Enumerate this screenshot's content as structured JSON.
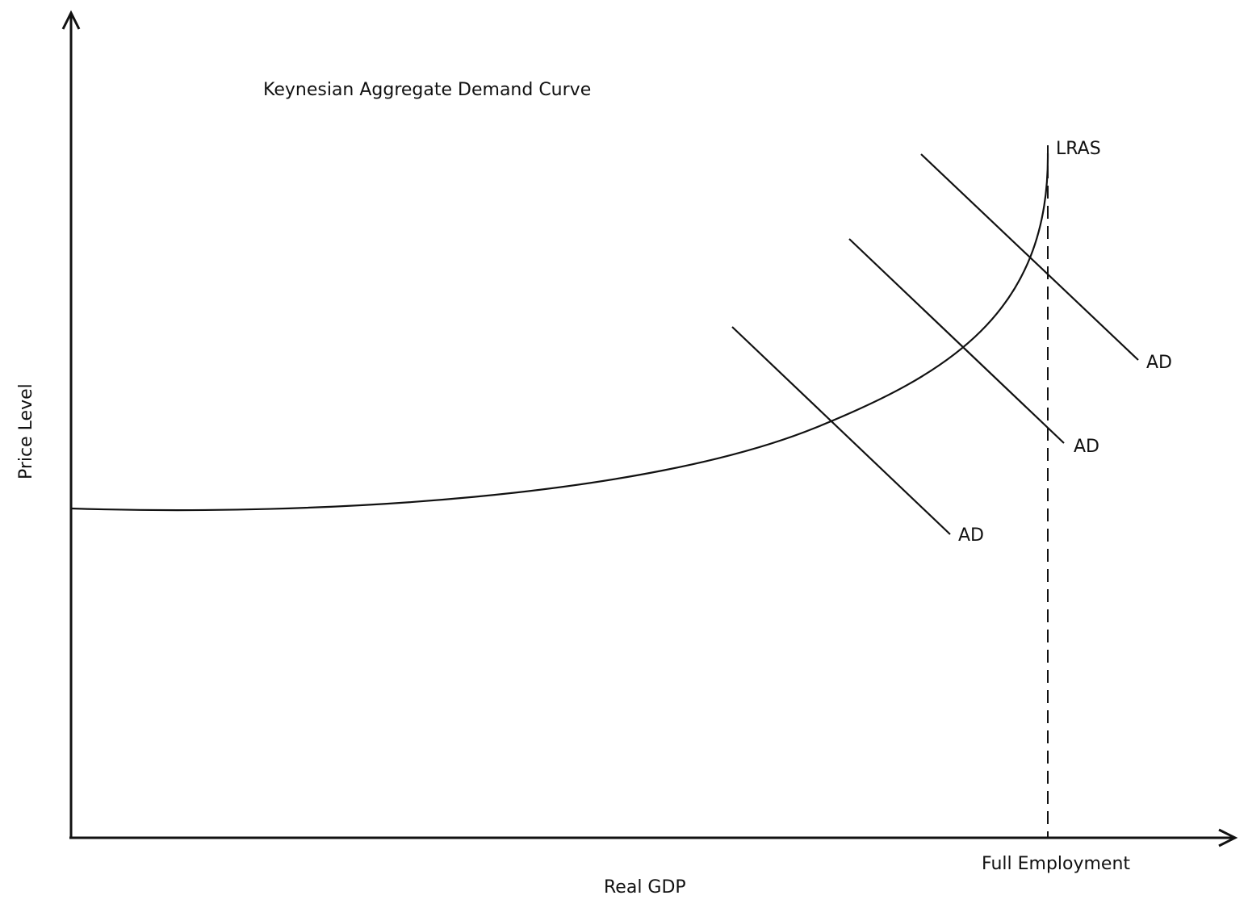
{
  "title": "Keynesian Aggregate Demand Curve",
  "axes": {
    "x_label": "Real GDP",
    "y_label": "Price Level"
  },
  "lras": {
    "label": "LRAS",
    "full_employment_label": "Full Employment"
  },
  "ad_curves": [
    {
      "label": "AD"
    },
    {
      "label": "AD"
    },
    {
      "label": "AD"
    }
  ],
  "colors": {
    "line": "#111111",
    "background": "#ffffff"
  }
}
